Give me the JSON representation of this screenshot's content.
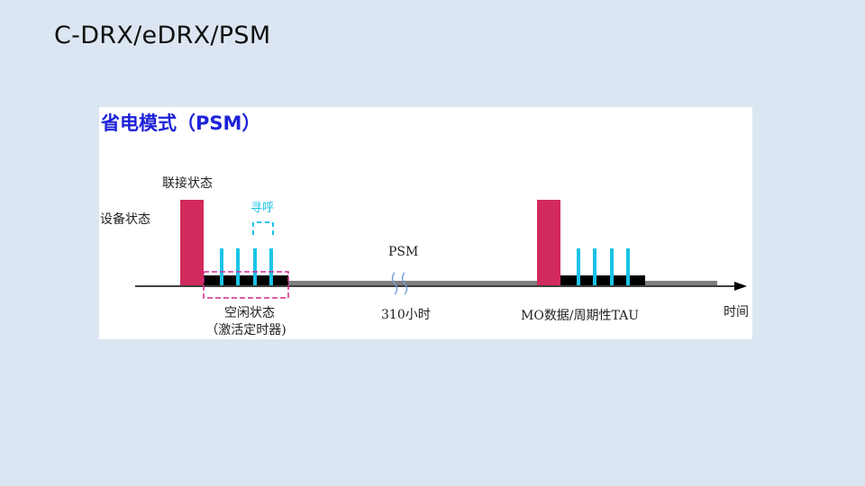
{
  "slide": {
    "title": "C-DRX/eDRX/PSM"
  },
  "diagram": {
    "title": "省电模式（PSM）",
    "labels": {
      "device_state": "设备状态",
      "connected_state": "联接状态",
      "paging": "寻呼",
      "psm": "PSM",
      "idle_state": "空闲状态",
      "timer_note": "（激活定时器)",
      "duration": "310小时",
      "mo_tau": "MO数据/周期性TAU",
      "time_axis": "时间"
    },
    "colors": {
      "connected_block": "#d12a5c",
      "paging_pulse": "#19c3e8",
      "idle_bar": "#000000",
      "psm_bar": "#7f7f7f",
      "timer_box": "#d6278d",
      "title": "#1e22d8"
    }
  }
}
